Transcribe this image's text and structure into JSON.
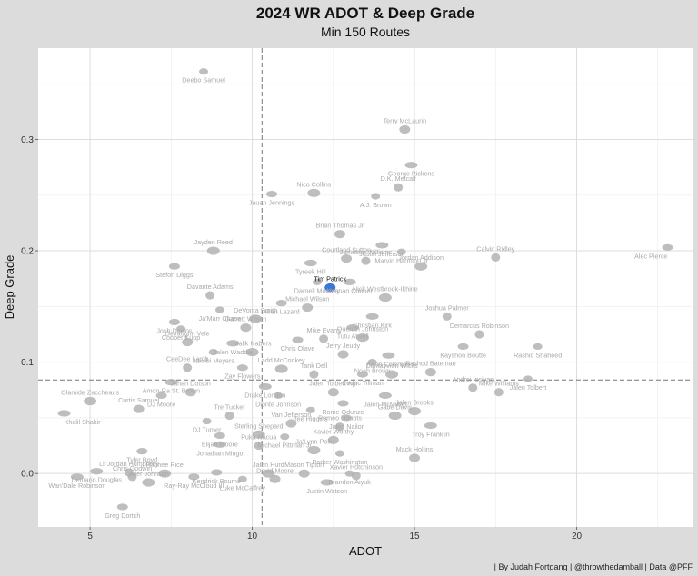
{
  "chart_data": {
    "type": "scatter",
    "title": "2024 WR ADOT & Deep Grade",
    "subtitle": "Min 150 Routes",
    "xlabel": "ADOT",
    "ylabel": "Deep Grade",
    "xlim": [
      3.4,
      23.6
    ],
    "ylim": [
      -0.048,
      0.382
    ],
    "xticks": [
      5,
      10,
      15,
      20
    ],
    "yticks": [
      0.0,
      0.1,
      0.2,
      0.3
    ],
    "xtick_labels": [
      "5",
      "10",
      "15",
      "20"
    ],
    "ytick_labels": [
      "0.0",
      "0.1",
      "0.2",
      "0.3"
    ],
    "reference_lines": {
      "x_mean": 10.3,
      "y_mean": 0.084
    },
    "grid": true,
    "caption": "| By Judah Fortgang | @throwthedamball | Data @PFF",
    "highlight": "Tim Patrick",
    "colors": {
      "highlight": "#3a78d8",
      "points": "#b3b3b3",
      "labels": "#a9a9a9",
      "panel": "#ffffff",
      "background": "#dcdcdc"
    },
    "points": [
      {
        "name": "Deebo Samuel",
        "x": 8.5,
        "y": 0.361
      },
      {
        "name": "Terry McLaurin",
        "x": 14.7,
        "y": 0.309
      },
      {
        "name": "George Pickens",
        "x": 14.9,
        "y": 0.277
      },
      {
        "name": "D.K. Metcalf",
        "x": 14.5,
        "y": 0.257
      },
      {
        "name": "Jauan Jennings",
        "x": 10.6,
        "y": 0.251
      },
      {
        "name": "Nico Collins",
        "x": 11.9,
        "y": 0.252
      },
      {
        "name": "A.J. Brown",
        "x": 13.8,
        "y": 0.249
      },
      {
        "name": "Brian Thomas Jr",
        "x": 12.7,
        "y": 0.215
      },
      {
        "name": "Justin Jefferson",
        "x": 14.0,
        "y": 0.205
      },
      {
        "name": "Calvin Ridley",
        "x": 17.5,
        "y": 0.194
      },
      {
        "name": "Alec Pierce",
        "x": 22.8,
        "y": 0.203
      },
      {
        "name": "Jayden Reed",
        "x": 8.8,
        "y": 0.2
      },
      {
        "name": "Marvin Harrison Jr",
        "x": 14.6,
        "y": 0.199
      },
      {
        "name": "Courtland Sutton",
        "x": 12.9,
        "y": 0.193
      },
      {
        "name": "Tyreek Hill",
        "x": 11.8,
        "y": 0.189
      },
      {
        "name": "Jameson Williams",
        "x": 13.5,
        "y": 0.191
      },
      {
        "name": "Stefon Diggs",
        "x": 7.6,
        "y": 0.186
      },
      {
        "name": "Jordan Addison",
        "x": 15.2,
        "y": 0.186
      },
      {
        "name": "Darnell Mooney",
        "x": 12.0,
        "y": 0.172
      },
      {
        "name": "Tim Patrick",
        "x": 12.4,
        "y": 0.167
      },
      {
        "name": "Keenan Cooper",
        "x": 13.0,
        "y": 0.172
      },
      {
        "name": "Davante Adams",
        "x": 8.7,
        "y": 0.16
      },
      {
        "name": "Allen Lazard",
        "x": 10.9,
        "y": 0.153
      },
      {
        "name": "Nick Westbrook-Ikhine",
        "x": 14.1,
        "y": 0.158
      },
      {
        "name": "Ja'Marr Chase",
        "x": 9.0,
        "y": 0.147
      },
      {
        "name": "Michael Wilson",
        "x": 11.7,
        "y": 0.149
      },
      {
        "name": "Christian Kirk",
        "x": 13.7,
        "y": 0.141
      },
      {
        "name": "Joshua Palmer",
        "x": 16.0,
        "y": 0.141
      },
      {
        "name": "Josh Downs",
        "x": 7.6,
        "y": 0.136
      },
      {
        "name": "DeVonta Smith",
        "x": 10.1,
        "y": 0.139
      },
      {
        "name": "Cooper Kupp",
        "x": 7.8,
        "y": 0.13
      },
      {
        "name": "Garrett Wilson",
        "x": 9.8,
        "y": 0.131
      },
      {
        "name": "Tutu Atwell",
        "x": 13.1,
        "y": 0.131
      },
      {
        "name": "Demarcus Robinson",
        "x": 17.0,
        "y": 0.125
      },
      {
        "name": "Chris Olave",
        "x": 11.4,
        "y": 0.12
      },
      {
        "name": "Quentin Johnston",
        "x": 13.4,
        "y": 0.122
      },
      {
        "name": "Rashid Shaheed",
        "x": 18.8,
        "y": 0.114
      },
      {
        "name": "Devaughn Vele",
        "x": 8.0,
        "y": 0.118
      },
      {
        "name": "Jalen Waddle",
        "x": 9.4,
        "y": 0.117
      },
      {
        "name": "Mike Evans",
        "x": 12.2,
        "y": 0.121
      },
      {
        "name": "Kayshon Boutte",
        "x": 16.5,
        "y": 0.114
      },
      {
        "name": "Malik Nabers",
        "x": 10.0,
        "y": 0.109
      },
      {
        "name": "Jakobi Meyers",
        "x": 8.8,
        "y": 0.109
      },
      {
        "name": "Jerry Jeudy",
        "x": 12.8,
        "y": 0.107
      },
      {
        "name": "Keon Coleman",
        "x": 14.2,
        "y": 0.106
      },
      {
        "name": "CeeDee Lamb",
        "x": 8.0,
        "y": 0.095
      },
      {
        "name": "Zay Flowers",
        "x": 9.7,
        "y": 0.095
      },
      {
        "name": "Ladd McConkey",
        "x": 10.9,
        "y": 0.094
      },
      {
        "name": "Noah Brown",
        "x": 13.7,
        "y": 0.1
      },
      {
        "name": "Rashod Bateman",
        "x": 15.5,
        "y": 0.091
      },
      {
        "name": "Amon-Ra St. Brown",
        "x": 7.5,
        "y": 0.082
      },
      {
        "name": "Tank Dell",
        "x": 11.9,
        "y": 0.089
      },
      {
        "name": "Cedric Tillman",
        "x": 13.4,
        "y": 0.089
      },
      {
        "name": "Dontayvion Wicks",
        "x": 14.3,
        "y": 0.089
      },
      {
        "name": "Jalen Tolbert",
        "x": 18.5,
        "y": 0.085
      },
      {
        "name": "Jahan Dotson",
        "x": 8.1,
        "y": 0.073
      },
      {
        "name": "Drake London",
        "x": 10.4,
        "y": 0.078
      },
      {
        "name": "Andrei Iosivas",
        "x": 16.8,
        "y": 0.077
      },
      {
        "name": "DJ Moore",
        "x": 7.2,
        "y": 0.07
      },
      {
        "name": "Olamide Zaccheaus",
        "x": 5.0,
        "y": 0.065
      },
      {
        "name": "Dionte Johnson",
        "x": 10.8,
        "y": 0.07
      },
      {
        "name": "Jalen Tolbert Agr",
        "x": 12.5,
        "y": 0.073
      },
      {
        "name": "Jalen McMillan",
        "x": 14.1,
        "y": 0.07
      },
      {
        "name": "Mike Williams",
        "x": 17.6,
        "y": 0.073
      },
      {
        "name": "Rome Odunze",
        "x": 12.8,
        "y": 0.063
      },
      {
        "name": "Jalen Brooks",
        "x": 15.0,
        "y": 0.056
      },
      {
        "name": "Tee Higgins",
        "x": 11.8,
        "y": 0.057
      },
      {
        "name": "Curtis Samuel",
        "x": 6.5,
        "y": 0.058
      },
      {
        "name": "Khalil Shakir",
        "x": 4.2,
        "y": 0.054
      },
      {
        "name": "Tre Tucker",
        "x": 9.3,
        "y": 0.052
      },
      {
        "name": "Jalen Nailor",
        "x": 12.9,
        "y": 0.05
      },
      {
        "name": "Gabe Davis",
        "x": 14.4,
        "y": 0.052
      },
      {
        "name": "DJ Turner",
        "x": 8.6,
        "y": 0.047
      },
      {
        "name": "Van Jefferson",
        "x": 11.2,
        "y": 0.045
      },
      {
        "name": "Troy Franklin",
        "x": 15.5,
        "y": 0.043
      },
      {
        "name": "Romeo Doubts",
        "x": 12.7,
        "y": 0.042
      },
      {
        "name": "Elijah Moore",
        "x": 9.0,
        "y": 0.034
      },
      {
        "name": "Sterling Shepard",
        "x": 10.2,
        "y": 0.035
      },
      {
        "name": "Michael Pittman Jr",
        "x": 11.0,
        "y": 0.033
      },
      {
        "name": "Xavier Worthy",
        "x": 12.5,
        "y": 0.03
      },
      {
        "name": "Jonathan Mingo",
        "x": 9.0,
        "y": 0.026
      },
      {
        "name": "Puka Nacua",
        "x": 10.2,
        "y": 0.025
      },
      {
        "name": "Tyler Boyd",
        "x": 6.6,
        "y": 0.02
      },
      {
        "name": "Ja'Lynn Polk",
        "x": 11.9,
        "y": 0.021
      },
      {
        "name": "Parker Washington",
        "x": 12.7,
        "y": 0.018
      },
      {
        "name": "Mack Hollins",
        "x": 15.0,
        "y": 0.014
      },
      {
        "name": "Demario Douglas",
        "x": 5.2,
        "y": 0.002
      },
      {
        "name": "Lil'Jordan Humphrey",
        "x": 6.2,
        "y": 0.001
      },
      {
        "name": "Kendrick Bourne",
        "x": 8.9,
        "y": 0.001
      },
      {
        "name": "Rashee Rice",
        "x": 7.3,
        "y": 0.0
      },
      {
        "name": "Brandon Aiyuk",
        "x": 13.0,
        "y": 0.0
      },
      {
        "name": "Mason Tipton",
        "x": 11.6,
        "y": 0.0
      },
      {
        "name": "Wan'Dale Robinson",
        "x": 4.6,
        "y": -0.003
      },
      {
        "name": "Chris Godwin",
        "x": 6.3,
        "y": -0.003
      },
      {
        "name": "Ray-Ray McCloud III",
        "x": 8.2,
        "y": -0.003
      },
      {
        "name": "Tyler Johnson",
        "x": 6.8,
        "y": -0.008
      },
      {
        "name": "Luke McCaffrey",
        "x": 9.7,
        "y": -0.005
      },
      {
        "name": "David Moore",
        "x": 10.7,
        "y": -0.005
      },
      {
        "name": "Justin Watson",
        "x": 12.3,
        "y": -0.008
      },
      {
        "name": "Xavier Hutchinson",
        "x": 13.2,
        "y": -0.002
      },
      {
        "name": "Greg Dortch",
        "x": 6.0,
        "y": -0.03
      },
      {
        "name": "Jalen Hurd",
        "x": 10.5,
        "y": 0.0
      }
    ]
  }
}
